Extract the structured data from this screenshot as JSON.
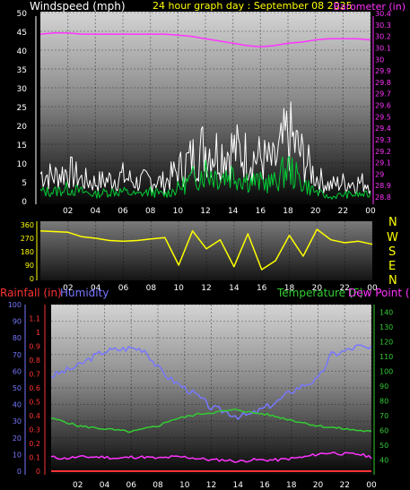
{
  "header": {
    "windspeed_title": "Windspeed (mph)",
    "graph_title": "24 hour graph day : September 08 2025",
    "barometer_title": "Barometer (in)"
  },
  "colors": {
    "background": "#000000",
    "white_text": "#ffffff",
    "title_yellow": "#ffff00",
    "barometer": "#ff33ff",
    "wind_gust": "#ffffff",
    "wind_avg": "#00cc33",
    "wind_dir": "#ffff00",
    "rain": "#ff3333",
    "humidity": "#7777ff",
    "temperature": "#33cc33",
    "dewpoint": "#ff33ff"
  },
  "chart_data": [
    {
      "id": "wind_baro",
      "type": "line",
      "x_ticks": [
        "02",
        "04",
        "06",
        "08",
        "10",
        "12",
        "14",
        "16",
        "18",
        "20",
        "22",
        "00"
      ],
      "left_axis": {
        "label": "Windspeed (mph)",
        "ylim": [
          0,
          50
        ],
        "ticks": [
          0,
          5,
          10,
          15,
          20,
          25,
          30,
          35,
          40,
          45,
          50
        ]
      },
      "right_axis": {
        "label": "Barometer (in)",
        "ylim": [
          28.8,
          30.4
        ],
        "ticks": [
          "28.8",
          "28.9",
          "29",
          "29.1",
          "29.2",
          "29.3",
          "29.4",
          "29.5",
          "29.6",
          "29.7",
          "29.8",
          "29.9",
          "30",
          "30.1",
          "30.2",
          "30.3",
          "30.4"
        ]
      },
      "series": [
        {
          "name": "Barometer",
          "axis": "right",
          "color": "#ff33ff",
          "x": [
            0,
            1,
            2,
            3,
            4,
            5,
            6,
            7,
            8,
            9,
            10,
            11,
            12,
            13,
            14,
            15,
            16,
            17,
            18,
            19,
            20,
            21,
            22,
            23,
            24
          ],
          "values": [
            30.22,
            30.23,
            30.23,
            30.22,
            30.22,
            30.22,
            30.22,
            30.22,
            30.22,
            30.22,
            30.21,
            30.2,
            30.18,
            30.16,
            30.14,
            30.12,
            30.11,
            30.12,
            30.14,
            30.15,
            30.17,
            30.18,
            30.18,
            30.18,
            30.17
          ]
        },
        {
          "name": "Wind gust",
          "axis": "left",
          "color": "#ffffff",
          "x": [
            0,
            1,
            2,
            3,
            4,
            5,
            6,
            7,
            8,
            9,
            10,
            11,
            12,
            13,
            14,
            15,
            16,
            17,
            18,
            19,
            20,
            21,
            22,
            23,
            24
          ],
          "values": [
            9,
            8,
            10,
            7,
            6,
            7,
            8,
            6,
            7,
            6,
            10,
            14,
            18,
            16,
            17,
            15,
            14,
            12,
            22,
            15,
            8,
            5,
            6,
            6,
            6
          ]
        },
        {
          "name": "Wind average",
          "axis": "left",
          "color": "#00cc33",
          "x": [
            0,
            1,
            2,
            3,
            4,
            5,
            6,
            7,
            8,
            9,
            10,
            11,
            12,
            13,
            14,
            15,
            16,
            17,
            18,
            19,
            20,
            21,
            22,
            23,
            24
          ],
          "values": [
            3,
            3,
            4,
            3,
            2,
            3,
            3,
            2,
            3,
            2,
            4,
            7,
            10,
            8,
            9,
            7,
            6,
            6,
            11,
            6,
            3,
            1,
            2,
            2,
            2
          ]
        }
      ]
    },
    {
      "id": "wind_direction",
      "type": "line",
      "x_ticks": [
        "02",
        "04",
        "06",
        "08",
        "10",
        "12",
        "14",
        "16",
        "18",
        "20",
        "22",
        "00"
      ],
      "left_axis": {
        "ylim": [
          0,
          360
        ],
        "ticks": [
          0,
          90,
          180,
          270,
          360
        ]
      },
      "compass": [
        "N",
        "W",
        "S",
        "E",
        "N"
      ],
      "series": [
        {
          "name": "Wind direction",
          "color": "#ffff00",
          "x": [
            0,
            1,
            2,
            3,
            4,
            5,
            6,
            7,
            8,
            9,
            10,
            11,
            12,
            13,
            14,
            15,
            16,
            17,
            18,
            19,
            20,
            21,
            22,
            23,
            24
          ],
          "values": [
            320,
            315,
            310,
            280,
            270,
            255,
            250,
            255,
            265,
            275,
            90,
            320,
            200,
            260,
            80,
            300,
            60,
            120,
            290,
            150,
            330,
            260,
            240,
            250,
            230
          ]
        }
      ]
    },
    {
      "id": "temp_hum_rain",
      "type": "line",
      "x_ticks": [
        "02",
        "04",
        "06",
        "08",
        "10",
        "12",
        "14",
        "16",
        "18",
        "20",
        "22",
        "00"
      ],
      "rain_axis": {
        "label": "Rainfall (in)",
        "ylim": [
          0,
          1.2
        ],
        "ticks": [
          "0",
          "0.1",
          "0.2",
          "0.3",
          "0.4",
          "0.5",
          "0.6",
          "0.7",
          "0.8",
          "0.9",
          "1",
          "1.1"
        ]
      },
      "humidity_axis": {
        "label": "Humidity",
        "ylim": [
          0,
          100
        ],
        "ticks": [
          0,
          10,
          20,
          30,
          40,
          50,
          60,
          70,
          80,
          90,
          100
        ]
      },
      "temp_axis": {
        "label": "Temperature (F)",
        "ylim": [
          30,
          145
        ],
        "ticks": [
          40,
          50,
          60,
          70,
          80,
          90,
          100,
          110,
          120,
          130,
          140
        ]
      },
      "dewpoint_label": "Dew Point (F)",
      "series": [
        {
          "name": "Humidity",
          "axis": "humidity",
          "color": "#7777ff",
          "x": [
            0,
            1,
            2,
            3,
            4,
            5,
            6,
            7,
            8,
            9,
            10,
            11,
            12,
            13,
            14,
            15,
            16,
            17,
            18,
            19,
            20,
            21,
            22,
            23,
            24
          ],
          "values": [
            57,
            60,
            63,
            68,
            72,
            73,
            74,
            73,
            62,
            55,
            50,
            45,
            38,
            36,
            33,
            34,
            38,
            42,
            48,
            52,
            55,
            70,
            72,
            75,
            73
          ]
        },
        {
          "name": "Temperature",
          "axis": "temp",
          "color": "#33cc33",
          "x": [
            0,
            1,
            2,
            3,
            4,
            5,
            6,
            7,
            8,
            9,
            10,
            11,
            12,
            13,
            14,
            15,
            16,
            17,
            18,
            19,
            20,
            21,
            22,
            23,
            24
          ],
          "values": [
            68,
            66,
            63,
            62,
            61,
            60,
            59,
            61,
            63,
            67,
            69,
            71,
            72,
            73,
            74,
            72,
            71,
            69,
            67,
            65,
            63,
            62,
            61,
            60,
            59
          ]
        },
        {
          "name": "Dew Point",
          "axis": "temp",
          "color": "#ff33ff",
          "x": [
            0,
            1,
            2,
            3,
            4,
            5,
            6,
            7,
            8,
            9,
            10,
            11,
            12,
            13,
            14,
            15,
            16,
            17,
            18,
            19,
            20,
            21,
            22,
            23,
            24
          ],
          "values": [
            42,
            41,
            42,
            42,
            42,
            41,
            42,
            42,
            41,
            42,
            42,
            41,
            40,
            40,
            39,
            40,
            40,
            40,
            41,
            42,
            44,
            45,
            44,
            44,
            42
          ]
        },
        {
          "name": "Rainfall",
          "axis": "rain",
          "color": "#ff3333",
          "x": [
            0,
            24
          ],
          "values": [
            0,
            0
          ]
        }
      ]
    }
  ]
}
